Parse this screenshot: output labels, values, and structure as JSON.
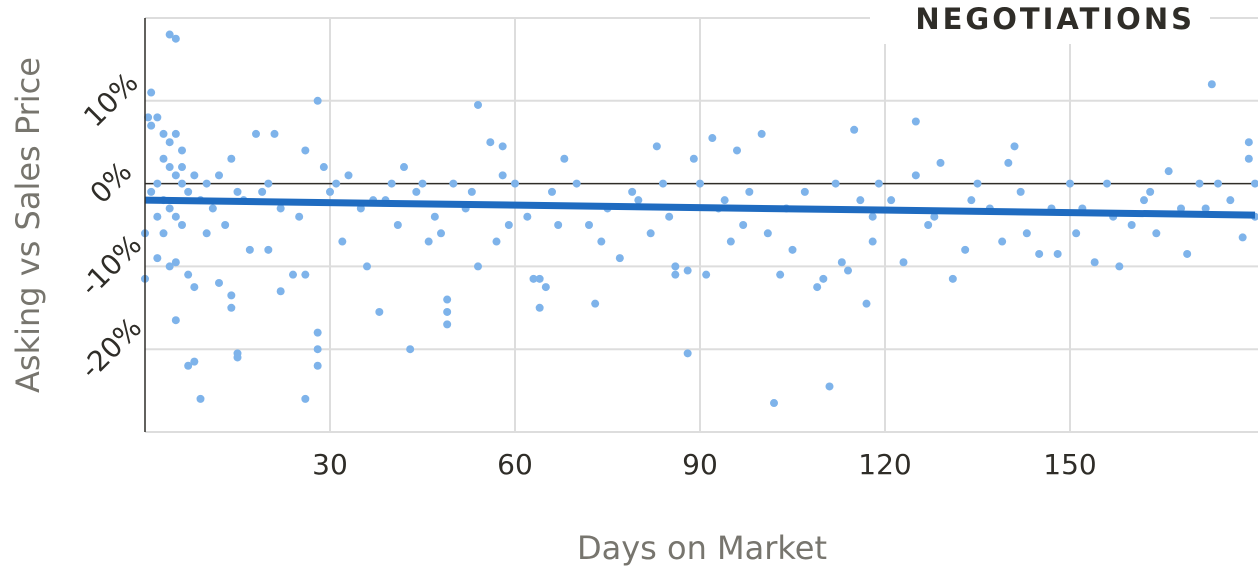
{
  "chart_data": {
    "type": "scatter",
    "title": "NEGOTIATIONS",
    "x_label": "Days on Market",
    "y_label": "Asking vs Sales Price",
    "xlim": [
      0,
      180
    ],
    "ylim": [
      -30,
      20
    ],
    "xticks": [
      30,
      60,
      90,
      120,
      150
    ],
    "yticks": [
      {
        "value": -20,
        "label": "-20%"
      },
      {
        "value": -10,
        "label": "-10%"
      },
      {
        "value": 0,
        "label": "0%"
      },
      {
        "value": 10,
        "label": "10%"
      }
    ],
    "grid": true,
    "color": "#7eb3ea",
    "x": [
      4,
      5,
      1,
      0.5,
      1,
      2,
      3,
      4,
      5,
      6,
      3,
      4,
      5,
      6,
      7,
      2,
      1,
      3,
      4,
      5,
      6,
      0,
      2,
      0,
      4,
      5,
      7,
      8,
      7,
      8,
      9,
      5,
      6,
      8,
      9,
      10,
      11,
      12,
      13,
      14,
      15,
      16,
      17,
      15,
      15,
      12,
      14,
      14,
      18,
      21,
      19,
      20,
      22,
      24,
      22,
      26,
      26,
      28,
      28,
      28,
      28,
      26,
      29,
      30,
      31,
      33,
      35,
      36,
      38,
      39,
      40,
      41,
      42,
      43,
      44,
      45,
      47,
      48,
      49,
      49,
      49,
      50,
      52,
      54,
      54,
      56,
      57,
      58,
      58,
      60,
      62,
      63,
      64,
      65,
      64,
      66,
      68,
      70,
      72,
      73,
      75,
      77,
      80,
      82,
      83,
      84,
      86,
      86,
      88,
      88,
      89,
      90,
      91,
      92,
      94,
      95,
      96,
      98,
      100,
      101,
      102,
      103,
      105,
      107,
      109,
      110,
      111,
      113,
      114,
      115,
      116,
      117,
      118,
      119,
      121,
      123,
      125,
      125,
      127,
      129,
      131,
      133,
      135,
      137,
      139,
      140,
      141,
      143,
      145,
      147,
      148,
      150,
      152,
      154,
      156,
      158,
      160,
      162,
      164,
      166,
      168,
      169,
      171,
      173,
      174,
      176,
      178,
      179,
      179,
      180,
      180,
      2,
      3,
      10,
      20,
      25,
      32,
      37,
      46,
      53,
      59,
      67,
      74,
      79,
      85,
      93,
      97,
      104,
      112,
      118,
      128,
      134,
      142,
      151,
      157,
      163,
      172
    ],
    "values": [
      18,
      17.5,
      11,
      8,
      7,
      8,
      6,
      5,
      6,
      4,
      3,
      2,
      1,
      0,
      -1,
      0,
      -1,
      -2,
      -3,
      -4,
      -5,
      -6,
      -9,
      -11.5,
      -10,
      -16.5,
      -11,
      -12.5,
      -22,
      -21.5,
      -26,
      -9.5,
      2,
      1,
      -2,
      0,
      -3,
      1,
      -5,
      3,
      -1,
      -2,
      -8,
      -20.5,
      -21,
      -12,
      -13.5,
      -15,
      6,
      6,
      -1,
      0,
      -3,
      -11,
      -13,
      4,
      -26,
      10,
      -18,
      -20,
      -22,
      -11,
      2,
      -1,
      0,
      1,
      -3,
      -10,
      -15.5,
      -2,
      0,
      -5,
      2,
      -20,
      -1,
      0,
      -4,
      -6,
      -14,
      -15.5,
      -17,
      0,
      -3,
      9.5,
      -10,
      5,
      -7,
      4.5,
      1,
      0,
      -4,
      -11.5,
      -11.5,
      -12.5,
      -15,
      -1,
      3,
      0,
      -5,
      -14.5,
      -3,
      -9,
      -2,
      -6,
      4.5,
      0,
      -10,
      -11,
      -10.5,
      -20.5,
      3,
      0,
      -11,
      5.5,
      -2,
      -7,
      4,
      -1,
      6,
      -6,
      -26.5,
      -11,
      -8,
      -1,
      -12.5,
      -11.5,
      -24.5,
      -9.5,
      -10.5,
      6.5,
      -2,
      -14.5,
      -7,
      0,
      -2,
      -9.5,
      7.5,
      1,
      -5,
      2.5,
      -11.5,
      -8,
      0,
      -3,
      -7,
      2.5,
      4.5,
      -6,
      -8.5,
      -3,
      -8.5,
      0,
      -3,
      -9.5,
      0,
      -10,
      -5,
      -2,
      -6,
      1.5,
      -3,
      -8.5,
      0,
      12,
      0,
      -2,
      -6.5,
      5,
      3,
      0,
      -4,
      -4,
      -6,
      -6,
      -8,
      -4,
      -7,
      -2,
      -7,
      -1,
      -5,
      -5,
      -7,
      -1,
      -4,
      -3,
      -5,
      -3,
      0,
      -4,
      -4,
      -2,
      -1,
      -6,
      -4,
      -1,
      -3
    ],
    "trend": {
      "x": [
        0,
        180
      ],
      "values": [
        -2,
        -3.8
      ],
      "color": "#1f6bc0"
    }
  }
}
